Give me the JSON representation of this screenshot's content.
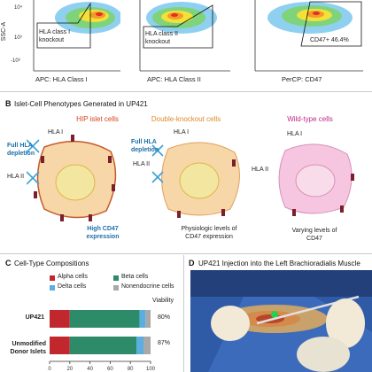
{
  "flow_panel": {
    "plots": [
      {
        "x_axis": "APC: HLA Class I",
        "gate_label": "HLA class I knockout",
        "y_axis": "SSC-A"
      },
      {
        "x_axis": "APC: HLA Class II",
        "gate_label": "HLA class II knockout"
      },
      {
        "x_axis": "PerCP: CD47",
        "gate_label": "CD47+ 46.4%"
      }
    ],
    "ticks": {
      "y_top": "10⁴",
      "y_mid": "10³",
      "y_neg": "-10³"
    }
  },
  "panel_b": {
    "label": "B",
    "title": "Islet-Cell Phenotypes Generated in UP421",
    "cells": [
      {
        "title": "HIP islet cells",
        "color": "#d4451a",
        "labels": [
          "HLA I",
          "HLA II",
          "Full HLA depletion",
          "High CD47 expression"
        ]
      },
      {
        "title": "Double-knockout cells",
        "color": "#e08a2a",
        "labels": [
          "HLA I",
          "HLA II",
          "Full HLA depletion",
          "Physiologic levels of CD47 expression"
        ]
      },
      {
        "title": "Wild-type cells",
        "color": "#c0288a",
        "labels": [
          "HLA I",
          "HLA II",
          "Varying levels of CD47"
        ]
      }
    ]
  },
  "panel_c": {
    "label": "C",
    "title": "Cell-Type Compositions",
    "legend": [
      {
        "name": "Alpha cells",
        "color": "#c0282d"
      },
      {
        "name": "Beta cells",
        "color": "#2e8b6a"
      },
      {
        "name": "Delta cells",
        "color": "#5aaee0"
      },
      {
        "name": "Nonendocrine cells",
        "color": "#a9a9a9"
      }
    ],
    "viability_header": "Viability",
    "x_ticks": [
      "0",
      "20",
      "40",
      "60",
      "80",
      "100"
    ]
  },
  "chart_data": {
    "type": "bar",
    "orientation": "horizontal",
    "stacked": true,
    "categories": [
      "UP421",
      "Unmodified Donor Islets"
    ],
    "series": [
      {
        "name": "Alpha cells",
        "values": [
          20,
          20
        ]
      },
      {
        "name": "Beta cells",
        "values": [
          69,
          66
        ]
      },
      {
        "name": "Delta cells",
        "values": [
          6,
          7
        ]
      },
      {
        "name": "Nonendocrine cells",
        "values": [
          5,
          7
        ]
      }
    ],
    "viability": [
      "80%",
      "87%"
    ],
    "xlim": [
      0,
      100
    ]
  },
  "panel_d": {
    "label": "D",
    "title": "UP421 Injection into the Left Brachioradialis Muscle"
  }
}
